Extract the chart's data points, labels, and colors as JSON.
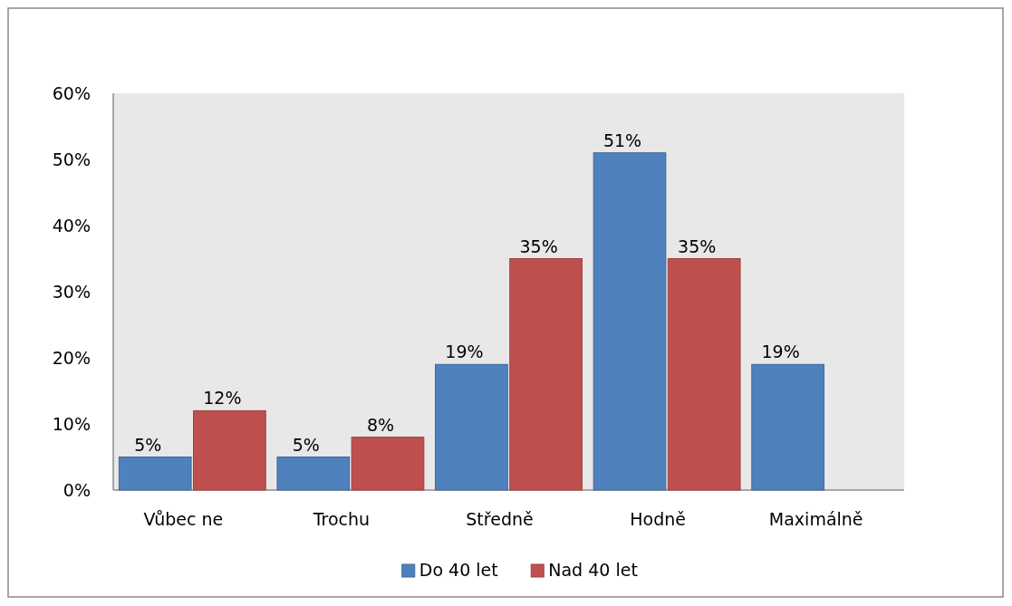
{
  "chart_data": {
    "type": "bar",
    "categories": [
      "Vůbec ne",
      "Trochu",
      "Středně",
      "Hodně",
      "Maximálně"
    ],
    "series": [
      {
        "name": "Do 40 let",
        "color": "#4f81bd",
        "values": [
          5,
          5,
          19,
          51,
          19
        ],
        "value_labels": [
          "5%",
          "5%",
          "19%",
          "51%",
          "19%"
        ]
      },
      {
        "name": "Nad 40 let",
        "color": "#c0504d",
        "values": [
          12,
          8,
          35,
          35,
          null
        ],
        "value_labels": [
          "12%",
          "8%",
          "35%",
          "35%",
          null
        ]
      }
    ],
    "ylim": [
      0,
      60
    ],
    "yticks": [
      {
        "value": 0,
        "label": "0%"
      },
      {
        "value": 10,
        "label": "10%"
      },
      {
        "value": 20,
        "label": "20%"
      },
      {
        "value": 30,
        "label": "30%"
      },
      {
        "value": 40,
        "label": "40%"
      },
      {
        "value": 50,
        "label": "50%"
      },
      {
        "value": 60,
        "label": "60%"
      }
    ],
    "grid": false,
    "legend": "bottom"
  }
}
